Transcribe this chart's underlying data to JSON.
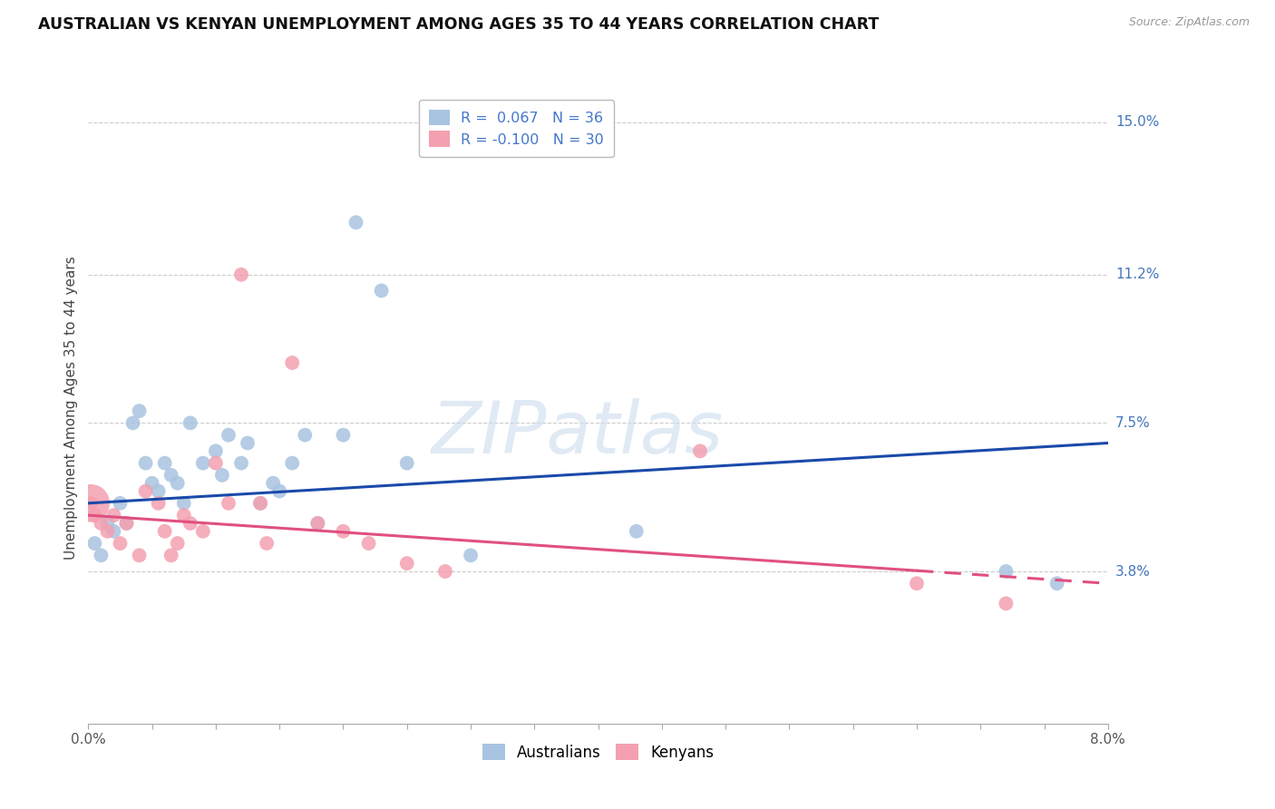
{
  "title": "AUSTRALIAN VS KENYAN UNEMPLOYMENT AMONG AGES 35 TO 44 YEARS CORRELATION CHART",
  "source": "Source: ZipAtlas.com",
  "ylabel": "Unemployment Among Ages 35 to 44 years",
  "xlim": [
    0.0,
    8.0
  ],
  "ylim": [
    0.0,
    15.75
  ],
  "yticks": [
    3.8,
    7.5,
    11.2,
    15.0
  ],
  "ytick_labels": [
    "3.8%",
    "7.5%",
    "11.2%",
    "15.0%"
  ],
  "background_color": "#ffffff",
  "watermark": "ZIPatlas",
  "legend_r_aus": "R =  0.067",
  "legend_n_aus": "N = 36",
  "legend_r_ken": "R = -0.100",
  "legend_n_ken": "N = 30",
  "australian_color": "#a8c4e0",
  "kenyan_color": "#f4a0b0",
  "trend_australian_color": "#1a4aaa",
  "trend_kenyan_color": "#e05080",
  "aus_x": [
    0.05,
    0.1,
    0.15,
    0.2,
    0.25,
    0.3,
    0.35,
    0.4,
    0.45,
    0.5,
    0.55,
    0.6,
    0.65,
    0.7,
    0.75,
    0.8,
    0.9,
    1.0,
    1.05,
    1.1,
    1.2,
    1.25,
    1.35,
    1.45,
    1.5,
    1.6,
    1.7,
    1.8,
    2.0,
    2.1,
    2.3,
    2.5,
    3.0,
    4.3,
    7.2,
    7.6
  ],
  "aus_y": [
    4.5,
    4.2,
    5.0,
    4.8,
    5.5,
    5.0,
    7.5,
    7.8,
    6.5,
    6.0,
    5.8,
    6.5,
    6.2,
    6.0,
    5.5,
    7.5,
    6.5,
    6.8,
    6.2,
    7.2,
    6.5,
    7.0,
    5.5,
    6.0,
    5.8,
    6.5,
    7.2,
    5.0,
    7.2,
    12.5,
    10.8,
    6.5,
    4.2,
    4.8,
    3.8,
    3.5
  ],
  "ken_x": [
    0.02,
    0.05,
    0.1,
    0.15,
    0.2,
    0.25,
    0.3,
    0.4,
    0.45,
    0.55,
    0.6,
    0.65,
    0.7,
    0.75,
    0.8,
    0.9,
    1.0,
    1.1,
    1.2,
    1.35,
    1.4,
    1.6,
    1.8,
    2.0,
    2.2,
    2.5,
    2.8,
    4.8,
    6.5,
    7.2
  ],
  "ken_y": [
    5.5,
    5.2,
    5.0,
    4.8,
    5.2,
    4.5,
    5.0,
    4.2,
    5.8,
    5.5,
    4.8,
    4.2,
    4.5,
    5.2,
    5.0,
    4.8,
    6.5,
    5.5,
    11.2,
    5.5,
    4.5,
    9.0,
    5.0,
    4.8,
    4.5,
    4.0,
    3.8,
    6.8,
    3.5,
    3.0
  ],
  "ken_large_x": [
    0.02
  ],
  "ken_large_y": [
    5.5
  ],
  "aus_trend_x0": 0.0,
  "aus_trend_y0": 5.5,
  "aus_trend_x1": 8.0,
  "aus_trend_y1": 7.0,
  "ken_trend_x0": 0.0,
  "ken_trend_y0": 5.2,
  "ken_trend_x1": 8.0,
  "ken_trend_y1": 3.5,
  "ken_dash_start": 6.5
}
